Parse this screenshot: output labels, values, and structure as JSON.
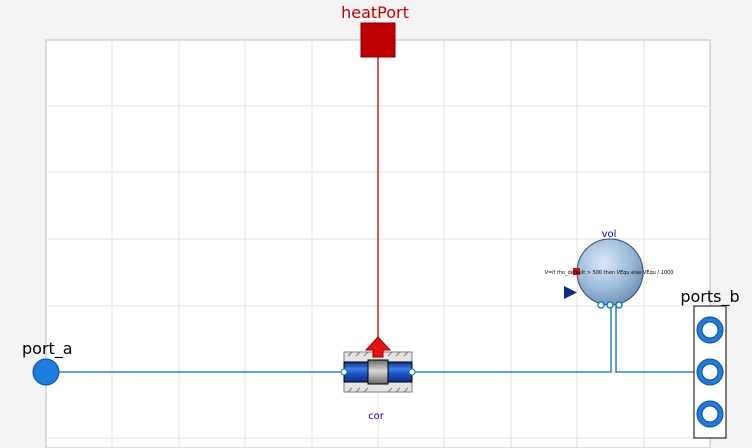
{
  "diagram": {
    "ports": {
      "heat_port": "heatPort",
      "port_a": "port_a",
      "ports_b": "ports_b"
    },
    "components": {
      "vol": {
        "name": "vol",
        "param": "V=if rho_default > 500 then VEqu else VEqu / 1000"
      },
      "cor": {
        "name": "cor"
      }
    },
    "colors": {
      "thermal": "#c00000",
      "fluid": "#0070c0",
      "fluid_port": "#1e7be0",
      "label_blue": "#0000c8",
      "grid": "#d6d6d6",
      "background": "#ffffff"
    }
  }
}
